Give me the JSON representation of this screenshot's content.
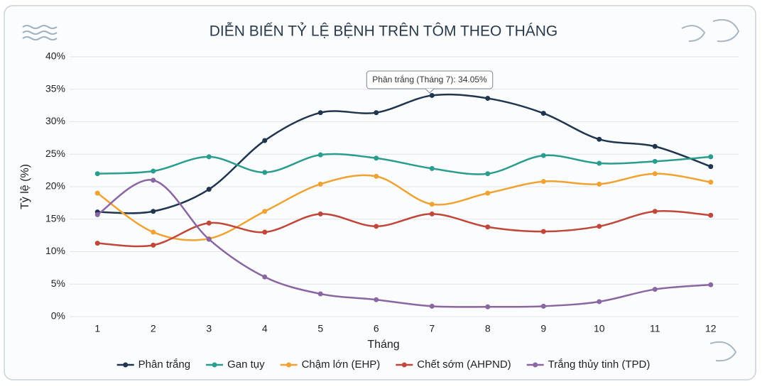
{
  "chart_data": {
    "type": "line",
    "title": "DIỄN BIẾN TỶ LỆ BỆNH TRÊN TÔM THEO THÁNG",
    "x_label": "Tháng",
    "y_label": "Tỷ lệ (%)",
    "annotation": "Phân trắng (Tháng 7): 34.05%",
    "x": [
      1,
      2,
      3,
      4,
      5,
      6,
      7,
      8,
      9,
      10,
      11,
      12
    ],
    "xlim": [
      0.5,
      12.5
    ],
    "xticks": [
      1,
      2,
      3,
      4,
      5,
      6,
      7,
      8,
      9,
      10,
      11,
      12
    ],
    "ylim": [
      0,
      40
    ],
    "yticks": [
      {
        "value": 0,
        "label": "0%"
      },
      {
        "value": 5,
        "label": "5%"
      },
      {
        "value": 10,
        "label": "10%"
      },
      {
        "value": 15,
        "label": "15%"
      },
      {
        "value": 20,
        "label": "20%"
      },
      {
        "value": 25,
        "label": "25%"
      },
      {
        "value": 30,
        "label": "30%"
      },
      {
        "value": 35,
        "label": "35%"
      },
      {
        "value": 40,
        "label": "40%"
      }
    ],
    "grid": true,
    "legend": "bottom",
    "series": [
      {
        "name": "Phân trắng",
        "color": "#1f3550",
        "values": [
          16.1,
          16.2,
          19.6,
          27.1,
          31.4,
          31.4,
          34.05,
          33.6,
          31.3,
          27.3,
          26.2,
          23.1
        ]
      },
      {
        "name": "Gan tụy",
        "color": "#2a9d8f",
        "values": [
          22.0,
          22.4,
          24.6,
          22.2,
          24.9,
          24.4,
          22.8,
          22.0,
          24.8,
          23.6,
          23.9,
          24.6
        ]
      },
      {
        "name": "Chậm lớn (EHP)",
        "color": "#f0a232",
        "values": [
          19.0,
          13.0,
          12.0,
          16.2,
          20.4,
          21.6,
          17.3,
          19.0,
          20.8,
          20.4,
          22.0,
          20.7
        ]
      },
      {
        "name": "Chết sớm (AHPND)",
        "color": "#c0473a",
        "values": [
          11.3,
          11.0,
          14.4,
          13.0,
          15.8,
          13.9,
          15.8,
          13.8,
          13.1,
          13.9,
          16.2,
          15.6
        ]
      },
      {
        "name": "Trắng thủy tinh (TPD)",
        "color": "#8a67a3",
        "values": [
          15.7,
          21.0,
          11.9,
          6.1,
          3.5,
          2.6,
          1.6,
          1.5,
          1.6,
          2.3,
          4.2,
          4.9
        ]
      }
    ]
  }
}
